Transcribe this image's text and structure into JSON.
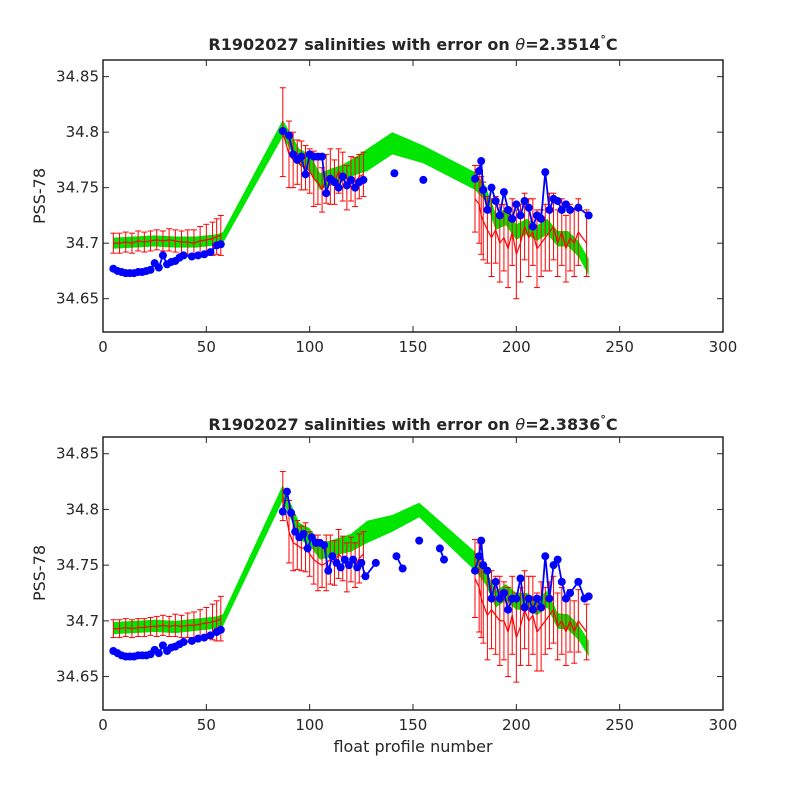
{
  "figure": {
    "xlabel": "float profile number"
  },
  "colors": {
    "band": "#00e600",
    "errorbar": "#ff0000",
    "float_points": "#0000ff",
    "axes": "#262626"
  },
  "chart_data": [
    {
      "type": "scatter",
      "title_prefix": "R1902027 salinities with error on ",
      "title_theta": "θ",
      "title_suffix": "=2.3514",
      "title_degree": "°",
      "title_unit": "C",
      "ylabel": "PSS-78",
      "xlim": [
        0,
        300
      ],
      "ylim": [
        34.62,
        34.865
      ],
      "xticks": [
        0,
        50,
        100,
        150,
        200,
        250,
        300
      ],
      "yticks": [
        34.65,
        34.7,
        34.75,
        34.8,
        34.85
      ],
      "ytick_labels": [
        "34.65",
        "34.7",
        "34.75",
        "34.8",
        "34.85"
      ],
      "series": [
        {
          "role": "reference-band",
          "color": "#00e600",
          "x": [
            5,
            15,
            25,
            35,
            45,
            55,
            58,
            87,
            95,
            100,
            105,
            110,
            115,
            120,
            128,
            140,
            155,
            180,
            185,
            190,
            195,
            200,
            205,
            210,
            215,
            220,
            225,
            230,
            235
          ],
          "lower": [
            34.695,
            34.696,
            34.697,
            34.696,
            34.696,
            34.698,
            34.7,
            34.796,
            34.77,
            34.765,
            34.748,
            34.752,
            34.755,
            34.76,
            34.765,
            34.78,
            34.772,
            34.748,
            34.738,
            34.712,
            34.716,
            34.703,
            34.708,
            34.702,
            34.708,
            34.697,
            34.697,
            34.688,
            34.671
          ],
          "upper": [
            34.705,
            34.706,
            34.707,
            34.706,
            34.706,
            34.708,
            34.71,
            34.811,
            34.785,
            34.78,
            34.763,
            34.767,
            34.77,
            34.775,
            34.785,
            34.8,
            34.788,
            34.764,
            34.752,
            34.727,
            34.731,
            34.717,
            34.722,
            34.716,
            34.722,
            34.711,
            34.711,
            34.702,
            34.686
          ]
        },
        {
          "role": "reference-with-error",
          "color": "#ff0000",
          "x": [
            5,
            8,
            11,
            14,
            17,
            20,
            23,
            26,
            29,
            32,
            35,
            38,
            41,
            44,
            47,
            50,
            53,
            55,
            57,
            87,
            90,
            92,
            94,
            96,
            98,
            100,
            102,
            104,
            106,
            108,
            110,
            112,
            114,
            116,
            118,
            120,
            122,
            124,
            126,
            180,
            182,
            183,
            184,
            186,
            188,
            190,
            192,
            194,
            196,
            198,
            200,
            202,
            204,
            206,
            208,
            210,
            212,
            214,
            216,
            218,
            220,
            222,
            224,
            226,
            228,
            230,
            234
          ],
          "y": [
            34.7,
            34.7,
            34.701,
            34.7,
            34.702,
            34.701,
            34.702,
            34.703,
            34.702,
            34.703,
            34.702,
            34.701,
            34.701,
            34.7,
            34.702,
            34.703,
            34.704,
            34.706,
            34.707,
            34.8,
            34.78,
            34.775,
            34.773,
            34.77,
            34.768,
            34.765,
            34.758,
            34.755,
            34.748,
            34.758,
            34.76,
            34.755,
            34.765,
            34.76,
            34.75,
            34.758,
            34.755,
            34.76,
            34.762,
            34.74,
            34.735,
            34.725,
            34.72,
            34.712,
            34.705,
            34.712,
            34.7,
            34.705,
            34.695,
            34.71,
            34.69,
            34.7,
            34.715,
            34.705,
            34.71,
            34.695,
            34.7,
            34.705,
            34.71,
            34.715,
            34.7,
            34.71,
            34.695,
            34.705,
            34.7,
            34.71,
            34.7
          ],
          "error": [
            0.009,
            0.009,
            0.009,
            0.009,
            0.009,
            0.009,
            0.009,
            0.009,
            0.009,
            0.01,
            0.01,
            0.01,
            0.011,
            0.012,
            0.013,
            0.014,
            0.015,
            0.016,
            0.018,
            0.04,
            0.03,
            0.025,
            0.02,
            0.022,
            0.02,
            0.02,
            0.025,
            0.02,
            0.02,
            0.022,
            0.025,
            0.02,
            0.02,
            0.022,
            0.02,
            0.02,
            0.022,
            0.02,
            0.02,
            0.03,
            0.035,
            0.035,
            0.035,
            0.03,
            0.035,
            0.03,
            0.035,
            0.03,
            0.035,
            0.03,
            0.04,
            0.035,
            0.03,
            0.035,
            0.03,
            0.035,
            0.03,
            0.03,
            0.035,
            0.03,
            0.03,
            0.03,
            0.03,
            0.03,
            0.03,
            0.03,
            0.03
          ]
        },
        {
          "role": "float-salinity",
          "color": "#0000ff",
          "x": [
            5,
            7,
            9,
            11,
            13,
            15,
            17,
            19,
            21,
            23,
            25,
            27,
            29,
            31,
            33,
            35,
            37,
            39,
            43,
            46,
            49,
            52,
            55,
            57,
            87,
            90,
            92,
            94,
            96,
            98,
            100,
            102,
            104,
            106,
            108,
            110,
            112,
            114,
            116,
            118,
            120,
            122,
            124,
            126,
            141,
            155,
            180,
            182,
            183,
            184,
            186,
            188,
            190,
            192,
            194,
            196,
            198,
            200,
            202,
            204,
            206,
            208,
            210,
            212,
            214,
            216,
            218,
            220,
            222,
            224,
            226,
            230,
            235
          ],
          "y": [
            34.677,
            34.675,
            34.674,
            34.673,
            34.673,
            34.673,
            34.674,
            34.674,
            34.675,
            34.676,
            34.682,
            34.678,
            34.689,
            34.681,
            34.683,
            34.684,
            34.687,
            34.689,
            34.688,
            34.689,
            34.69,
            34.692,
            34.698,
            34.699,
            34.801,
            34.797,
            34.78,
            34.775,
            34.778,
            34.762,
            34.78,
            34.778,
            34.778,
            34.778,
            34.745,
            34.758,
            34.755,
            34.75,
            34.76,
            34.752,
            34.757,
            34.75,
            34.755,
            34.757,
            34.763,
            34.757,
            34.758,
            34.765,
            34.774,
            34.748,
            34.73,
            34.75,
            34.738,
            34.725,
            34.746,
            34.73,
            34.722,
            34.735,
            34.725,
            34.738,
            34.732,
            34.715,
            34.725,
            34.722,
            34.764,
            34.73,
            34.74,
            34.738,
            34.73,
            34.735,
            34.73,
            34.732,
            34.725
          ]
        }
      ]
    },
    {
      "type": "scatter",
      "title_prefix": "R1902027 salinities with error on ",
      "title_theta": "θ",
      "title_suffix": "=2.3836",
      "title_degree": "°",
      "title_unit": "C",
      "ylabel": "PSS-78",
      "xlabel": "float profile number",
      "xlim": [
        0,
        300
      ],
      "ylim": [
        34.62,
        34.865
      ],
      "xticks": [
        0,
        50,
        100,
        150,
        200,
        250,
        300
      ],
      "yticks": [
        34.65,
        34.7,
        34.75,
        34.8,
        34.85
      ],
      "ytick_labels": [
        "34.65",
        "34.7",
        "34.75",
        "34.8",
        "34.85"
      ],
      "series": [
        {
          "role": "reference-band",
          "color": "#00e600",
          "x": [
            5,
            15,
            25,
            35,
            45,
            55,
            58,
            87,
            95,
            100,
            105,
            110,
            115,
            120,
            128,
            140,
            153,
            180,
            185,
            190,
            195,
            200,
            205,
            210,
            215,
            220,
            225,
            230,
            235
          ],
          "lower": [
            34.688,
            34.689,
            34.69,
            34.689,
            34.691,
            34.693,
            34.695,
            34.808,
            34.773,
            34.768,
            34.755,
            34.757,
            34.76,
            34.762,
            34.77,
            34.78,
            34.793,
            34.745,
            34.733,
            34.712,
            34.718,
            34.71,
            34.71,
            34.705,
            34.712,
            34.693,
            34.692,
            34.683,
            34.668
          ],
          "upper": [
            34.699,
            34.7,
            34.701,
            34.7,
            34.702,
            34.704,
            34.706,
            34.822,
            34.788,
            34.783,
            34.77,
            34.772,
            34.775,
            34.778,
            34.79,
            34.795,
            34.806,
            34.762,
            34.747,
            34.727,
            34.733,
            34.725,
            34.725,
            34.72,
            34.727,
            34.707,
            34.706,
            34.697,
            34.682
          ]
        },
        {
          "role": "reference-with-error",
          "color": "#ff0000",
          "x": [
            5,
            8,
            11,
            14,
            17,
            20,
            23,
            26,
            29,
            32,
            35,
            38,
            41,
            44,
            47,
            50,
            53,
            55,
            57,
            87,
            90,
            92,
            94,
            96,
            98,
            100,
            102,
            104,
            106,
            108,
            110,
            112,
            114,
            116,
            118,
            120,
            122,
            124,
            126,
            180,
            182,
            183,
            184,
            186,
            188,
            190,
            192,
            194,
            196,
            198,
            200,
            202,
            204,
            206,
            208,
            210,
            212,
            214,
            216,
            218,
            220,
            222,
            224,
            226,
            228,
            230,
            234
          ],
          "y": [
            34.693,
            34.693,
            34.694,
            34.693,
            34.694,
            34.694,
            34.695,
            34.695,
            34.696,
            34.695,
            34.696,
            34.695,
            34.696,
            34.696,
            34.697,
            34.698,
            34.699,
            34.7,
            34.702,
            34.812,
            34.78,
            34.77,
            34.768,
            34.765,
            34.766,
            34.76,
            34.755,
            34.752,
            34.75,
            34.752,
            34.755,
            34.752,
            34.76,
            34.756,
            34.748,
            34.755,
            34.75,
            34.756,
            34.76,
            34.738,
            34.73,
            34.72,
            34.715,
            34.705,
            34.71,
            34.705,
            34.7,
            34.7,
            34.69,
            34.705,
            34.685,
            34.695,
            34.71,
            34.7,
            34.705,
            34.69,
            34.695,
            34.7,
            34.705,
            34.71,
            34.695,
            34.7,
            34.69,
            34.7,
            34.69,
            34.7,
            34.69
          ],
          "error": [
            0.008,
            0.008,
            0.008,
            0.008,
            0.008,
            0.008,
            0.008,
            0.009,
            0.009,
            0.009,
            0.01,
            0.01,
            0.011,
            0.012,
            0.013,
            0.014,
            0.016,
            0.018,
            0.02,
            0.022,
            0.028,
            0.025,
            0.022,
            0.02,
            0.022,
            0.02,
            0.022,
            0.025,
            0.02,
            0.025,
            0.022,
            0.02,
            0.022,
            0.02,
            0.022,
            0.02,
            0.02,
            0.022,
            0.02,
            0.035,
            0.04,
            0.035,
            0.035,
            0.04,
            0.035,
            0.035,
            0.04,
            0.035,
            0.04,
            0.035,
            0.04,
            0.035,
            0.035,
            0.04,
            0.035,
            0.035,
            0.04,
            0.03,
            0.03,
            0.03,
            0.03,
            0.03,
            0.03,
            0.028,
            0.028,
            0.028,
            0.025
          ]
        },
        {
          "role": "float-salinity",
          "color": "#0000ff",
          "x": [
            5,
            7,
            9,
            11,
            13,
            15,
            17,
            19,
            21,
            23,
            25,
            27,
            29,
            31,
            33,
            35,
            37,
            39,
            43,
            46,
            49,
            52,
            55,
            57,
            87,
            89,
            91,
            93,
            95,
            97,
            99,
            101,
            103,
            105,
            107,
            109,
            111,
            113,
            115,
            117,
            119,
            121,
            123,
            125,
            127,
            132,
            142,
            145,
            153,
            163,
            165,
            180,
            182,
            183,
            184,
            186,
            188,
            190,
            192,
            194,
            196,
            198,
            200,
            202,
            204,
            206,
            208,
            210,
            212,
            214,
            216,
            218,
            220,
            222,
            224,
            226,
            230,
            233,
            235
          ],
          "y": [
            34.673,
            34.671,
            34.669,
            34.668,
            34.668,
            34.668,
            34.669,
            34.669,
            34.669,
            34.67,
            34.674,
            34.671,
            34.678,
            34.673,
            34.676,
            34.677,
            34.679,
            34.681,
            34.682,
            34.684,
            34.685,
            34.687,
            34.69,
            34.692,
            34.798,
            34.816,
            34.797,
            34.78,
            34.775,
            34.778,
            34.765,
            34.775,
            34.77,
            34.77,
            34.768,
            34.745,
            34.758,
            34.752,
            34.748,
            34.755,
            34.75,
            34.755,
            34.748,
            34.752,
            34.74,
            34.752,
            34.758,
            34.747,
            34.772,
            34.765,
            34.755,
            34.745,
            34.758,
            34.772,
            34.75,
            34.745,
            34.72,
            34.735,
            34.72,
            34.725,
            34.71,
            34.72,
            34.72,
            34.738,
            34.712,
            34.72,
            34.71,
            34.72,
            34.712,
            34.758,
            34.72,
            34.75,
            34.755,
            34.735,
            34.72,
            34.725,
            34.735,
            34.72,
            34.722
          ]
        }
      ]
    }
  ]
}
